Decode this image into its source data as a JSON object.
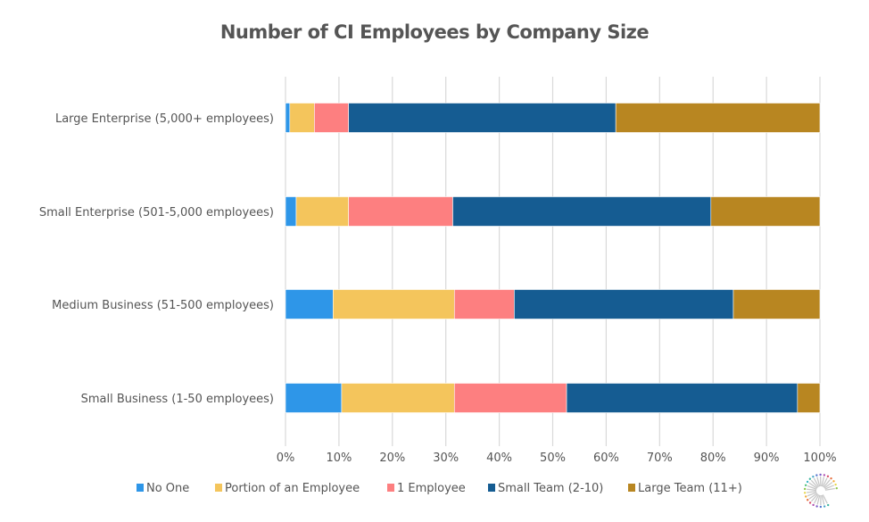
{
  "chart_data": {
    "type": "bar",
    "orientation": "horizontal",
    "stacked": "percent",
    "title": "Number of CI Employees by Company Size",
    "xlabel": "",
    "ylabel": "",
    "xlim": [
      0,
      100
    ],
    "grid": true,
    "legend_position": "bottom",
    "x_ticks": [
      "0%",
      "10%",
      "20%",
      "30%",
      "40%",
      "50%",
      "60%",
      "70%",
      "80%",
      "90%",
      "100%"
    ],
    "categories": [
      "Large Enterprise (5,000+ employees)",
      "Small Enterprise (501-5,000 employees)",
      "Medium Business (51-500 employees)",
      "Small Business (1-50 employees)"
    ],
    "series": [
      {
        "name": "No One",
        "color": "#2E96E8",
        "values": [
          0.8,
          2.0,
          8.9,
          10.5
        ]
      },
      {
        "name": "Portion of an Employee",
        "color": "#F4C55C",
        "values": [
          4.6,
          9.8,
          22.7,
          21.1
        ]
      },
      {
        "name": "1 Employee",
        "color": "#FD7F80",
        "values": [
          6.4,
          19.5,
          11.2,
          21.0
        ]
      },
      {
        "name": "Small Team (2-10)",
        "color": "#155C92",
        "values": [
          50.0,
          48.3,
          41.0,
          43.2
        ]
      },
      {
        "name": "Large Team (11+)",
        "color": "#B88621",
        "values": [
          38.2,
          20.4,
          16.2,
          4.2
        ]
      }
    ]
  },
  "logo": {
    "icon": "sunburst-logo-icon"
  }
}
